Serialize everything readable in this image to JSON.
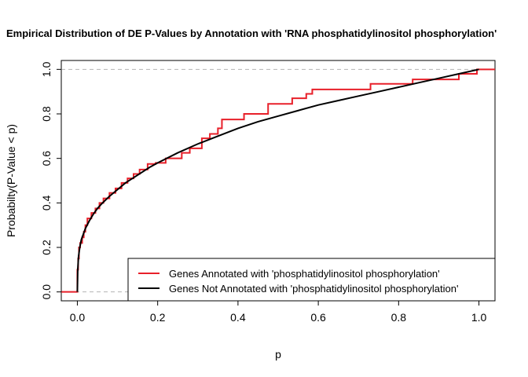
{
  "chart_data": {
    "type": "line",
    "title": "Empirical Distribution of DE P-Values by Annotation with 'RNA phosphatidylinositol phosphorylation'",
    "xlabel": "p",
    "ylabel": "Probabilty(P-Value < p)",
    "xlim": [
      -0.04,
      1.04
    ],
    "ylim": [
      -0.04,
      1.04
    ],
    "x_ticks": [
      0.0,
      0.2,
      0.4,
      0.6,
      0.8,
      1.0
    ],
    "y_ticks": [
      0.0,
      0.2,
      0.4,
      0.6,
      0.8,
      1.0
    ],
    "x_tick_labels": [
      "0.0",
      "0.2",
      "0.4",
      "0.6",
      "0.8",
      "1.0"
    ],
    "y_tick_labels": [
      "0.0",
      "0.2",
      "0.4",
      "0.6",
      "0.8",
      "1.0"
    ],
    "reference_lines": [
      0,
      1
    ],
    "legend_position": "bottom-right",
    "series": [
      {
        "name": "Genes Annotated with 'phosphatidylinositol phosphorylation'",
        "color": "#e8202a",
        "style": "step",
        "x": [
          -0.04,
          0.0,
          0.002,
          0.004,
          0.007,
          0.012,
          0.016,
          0.02,
          0.025,
          0.035,
          0.045,
          0.055,
          0.065,
          0.08,
          0.095,
          0.11,
          0.125,
          0.14,
          0.155,
          0.175,
          0.195,
          0.22,
          0.26,
          0.28,
          0.31,
          0.33,
          0.35,
          0.36,
          0.415,
          0.475,
          0.535,
          0.57,
          0.585,
          0.73,
          0.835,
          0.95,
          0.995,
          1.04
        ],
        "y": [
          0.0,
          0.1,
          0.15,
          0.2,
          0.22,
          0.245,
          0.27,
          0.3,
          0.33,
          0.355,
          0.375,
          0.4,
          0.42,
          0.445,
          0.465,
          0.49,
          0.51,
          0.53,
          0.55,
          0.575,
          0.58,
          0.6,
          0.625,
          0.645,
          0.69,
          0.71,
          0.735,
          0.775,
          0.8,
          0.845,
          0.87,
          0.89,
          0.91,
          0.935,
          0.955,
          0.98,
          1.0,
          1.0
        ]
      },
      {
        "name": "Genes Not Annotated with 'phosphatidylinositol phosphorylation'",
        "color": "#000000",
        "style": "line",
        "x": [
          0.0,
          0.001,
          0.003,
          0.006,
          0.01,
          0.015,
          0.02,
          0.03,
          0.04,
          0.05,
          0.06,
          0.08,
          0.1,
          0.12,
          0.15,
          0.18,
          0.2,
          0.25,
          0.3,
          0.35,
          0.4,
          0.45,
          0.5,
          0.55,
          0.6,
          0.65,
          0.7,
          0.75,
          0.8,
          0.85,
          0.9,
          0.95,
          1.0
        ],
        "y": [
          0.0,
          0.1,
          0.16,
          0.2,
          0.235,
          0.26,
          0.285,
          0.32,
          0.35,
          0.375,
          0.395,
          0.43,
          0.46,
          0.49,
          0.525,
          0.56,
          0.58,
          0.625,
          0.665,
          0.7,
          0.735,
          0.765,
          0.79,
          0.815,
          0.84,
          0.86,
          0.88,
          0.9,
          0.92,
          0.94,
          0.96,
          0.98,
          1.0
        ]
      }
    ]
  }
}
